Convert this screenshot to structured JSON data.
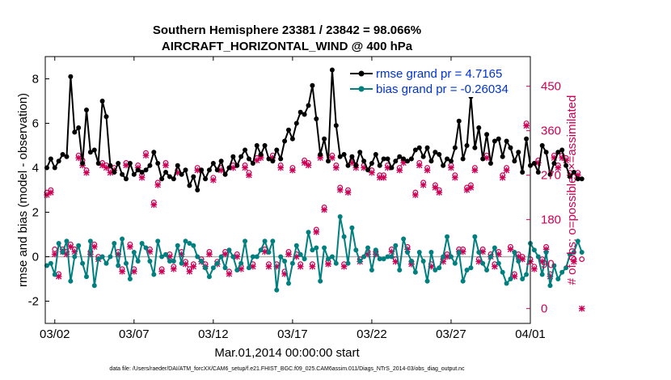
{
  "chart_data": {
    "type": "line",
    "title_line1": "Southern Hemisphere 23381 / 23842 = 98.066%",
    "title_line2": "AIRCRAFT_HORIZONTAL_WIND @ 400 hPa",
    "xlabel": "Mar.01,2014 00:00:00 start",
    "ylabel_left": "rmse and bias (model - observation)",
    "ylabel_right": "# of obs: o=possible; ×=assimilated",
    "footnote": "data file: /Users/raeder/DAI/ATM_forcXX/CAM6_setup/f.e21.FHIST_BGC.f09_025.CAM6assim.011/Diags_NTrS_2014-03/obs_diag_output.nc",
    "xlim": [
      0.4,
      31.0
    ],
    "ylim_left": [
      -3,
      9
    ],
    "ylim_right": [
      -30,
      510
    ],
    "x_ticks": [
      1.0,
      6.0,
      11.0,
      16.0,
      21.0,
      26.0,
      31.0
    ],
    "x_tick_labels": [
      "03/02",
      "03/07",
      "03/12",
      "03/17",
      "03/22",
      "03/27",
      "04/01"
    ],
    "yticks_left": [
      "-2",
      "0",
      "2",
      "4",
      "6",
      "8"
    ],
    "yticks_right": [
      "0",
      "90",
      "180",
      "270",
      "360",
      "450"
    ],
    "legend": {
      "rmse_label": "rmse grand pr = 4.7165",
      "bias_label": "bias grand pr = -0.26034",
      "placement": "top-right"
    },
    "colors": {
      "rmse": "#000000",
      "bias": "#007f7f",
      "obs": "#cc0055",
      "legend_text": "#0033cc",
      "zero_line": "#b0b0b0"
    },
    "start_x": 0.5,
    "dx": 0.25,
    "series": [
      {
        "name": "rmse",
        "values": [
          4.0,
          4.4,
          4.0,
          4.3,
          4.6,
          4.5,
          8.1,
          5.6,
          5.8,
          4.2,
          6.6,
          4.7,
          4.8,
          4.2,
          7.0,
          6.3,
          4.1,
          3.8,
          4.2,
          3.7,
          3.5,
          4.2,
          3.7,
          3.9,
          3.8,
          3.9,
          4.1,
          4.7,
          4.2,
          3.5,
          3.8,
          3.6,
          3.5,
          4.1,
          3.7,
          3.9,
          3.2,
          3.6,
          3.0,
          3.9,
          3.5,
          3.9,
          4.2,
          3.9,
          4.3,
          3.7,
          4.0,
          4.5,
          4.1,
          4.5,
          4.8,
          4.4,
          4.2,
          5.0,
          4.6,
          5.0,
          4.4,
          4.3,
          4.8,
          4.4,
          5.2,
          5.7,
          5.3,
          6.0,
          6.5,
          6.4,
          6.8,
          7.7,
          6.2,
          4.6,
          5.3,
          4.3,
          8.4,
          5.9,
          4.5,
          4.6,
          4.1,
          4.5,
          4.1,
          4.7,
          4.3,
          3.9,
          4.2,
          4.6,
          4.1,
          4.4,
          4.4,
          4.0,
          4.3,
          4.5,
          4.4,
          4.3,
          4.4,
          4.8,
          4.9,
          4.5,
          4.9,
          4.3,
          4.7,
          4.6,
          4.1,
          4.4,
          4.3,
          4.9,
          6.1,
          4.4,
          5.0,
          7.2,
          4.9,
          5.8,
          4.4,
          5.5,
          4.2,
          5.2,
          5.3,
          4.5,
          5.2,
          4.9,
          4.3,
          4.7,
          3.8,
          5.3,
          4.1,
          4.2,
          3.8,
          5.0,
          4.7,
          3.7,
          4.2,
          4.7,
          4.8,
          4.1,
          3.6,
          3.8,
          3.5,
          3.5
        ],
        "color": "#000000"
      },
      {
        "name": "bias",
        "values": [
          -0.4,
          -0.3,
          -0.8,
          0.6,
          0.2,
          0.7,
          -1.1,
          0.0,
          0.5,
          -0.3,
          -0.9,
          0.7,
          -1.3,
          -0.1,
          0.0,
          -0.3,
          0.0,
          0.6,
          -0.4,
          0.8,
          -0.3,
          -1.0,
          0.2,
          -0.2,
          0.6,
          0.4,
          -0.2,
          -0.8,
          0.7,
          0.0,
          0.1,
          -0.2,
          -0.2,
          0.5,
          -0.3,
          0.7,
          0.6,
          0.5,
          0.0,
          -0.2,
          -0.5,
          -0.9,
          -0.5,
          -0.3,
          0.0,
          -0.5,
          0.3,
          0.0,
          -0.6,
          -0.3,
          0.7,
          -0.5,
          0.0,
          0.0,
          0.3,
          0.7,
          0.2,
          0.7,
          -1.5,
          0.0,
          -0.2,
          -1.2,
          -0.3,
          0.5,
          0.1,
          -0.1,
          1.1,
          0.3,
          0.4,
          -1.1,
          0.4,
          -0.1,
          0.0,
          -0.3,
          1.8,
          0.9,
          -0.3,
          1.3,
          0.3,
          -0.2,
          0.0,
          0.4,
          -0.6,
          0.3,
          -0.1,
          -0.1,
          0.0,
          0.0,
          0.5,
          -0.6,
          0.8,
          0.2,
          -0.2,
          -0.7,
          0.2,
          -0.2,
          -1.1,
          0.2,
          -0.6,
          -0.5,
          0.0,
          0.9,
          0.0,
          -0.3,
          0.2,
          -1.1,
          -0.6,
          -0.5,
          0.9,
          0.2,
          -0.3,
          -0.6,
          0.0,
          0.4,
          -0.3,
          -0.7,
          -1.2,
          -1.0,
          0.2,
          -0.2,
          -1.0,
          -0.8,
          0.6,
          0.3,
          0.0,
          -0.8,
          0.2,
          -1.3,
          -0.4,
          -1.0,
          -0.7,
          -0.5,
          0.1,
          0.2,
          0.7,
          0.2
        ],
        "color": "#007f7f"
      },
      {
        "name": "obs_possible",
        "values": [
          235,
          240,
          120,
          70,
          120,
          115,
          130,
          120,
          310,
          300,
          280,
          115,
          130,
          105,
          295,
          290,
          280,
          285,
          115,
          80,
          295,
          130,
          80,
          290,
          270,
          315,
          120,
          215,
          255,
          80,
          295,
          110,
          85,
          280,
          115,
          95,
          80,
          90,
          285,
          100,
          90,
          115,
          265,
          95,
          285,
          115,
          75,
          290,
          110,
          85,
          290,
          275,
          90,
          305,
          310,
          120,
          90,
          310,
          90,
          290,
          75,
          115,
          285,
          110,
          90,
          300,
          295,
          90,
          160,
          310,
          205,
          95,
          310,
          290,
          245,
          90,
          240,
          300,
          290,
          100,
          290,
          115,
          280,
          115,
          270,
          270,
          290,
          120,
          100,
          285,
          300,
          125,
          95,
          235,
          295,
          255,
          285,
          90,
          250,
          240,
          100,
          110,
          290,
          270,
          120,
          120,
          245,
          250,
          285,
          100,
          120,
          310,
          110,
          90,
          115,
          270,
          285,
          125,
          70,
          110,
          105,
          375,
          100,
          85,
          300,
          100,
          125,
          70,
          310,
          290,
          310,
          305,
          275,
          100,
          275,
          100
        ],
        "symbol": "circle",
        "color": "#cc0055"
      },
      {
        "name": "obs_assimilated",
        "values": [
          230,
          235,
          110,
          65,
          115,
          110,
          125,
          115,
          305,
          290,
          275,
          110,
          125,
          100,
          290,
          285,
          275,
          280,
          110,
          75,
          290,
          125,
          75,
          285,
          265,
          310,
          115,
          210,
          250,
          75,
          290,
          105,
          80,
          275,
          110,
          90,
          75,
          85,
          280,
          95,
          85,
          110,
          260,
          90,
          280,
          110,
          70,
          285,
          105,
          80,
          285,
          270,
          85,
          300,
          305,
          115,
          85,
          305,
          85,
          285,
          70,
          110,
          280,
          105,
          85,
          295,
          290,
          85,
          155,
          305,
          200,
          90,
          305,
          285,
          240,
          85,
          235,
          295,
          285,
          95,
          285,
          110,
          275,
          110,
          265,
          265,
          285,
          115,
          95,
          280,
          295,
          120,
          90,
          230,
          290,
          250,
          280,
          85,
          245,
          235,
          95,
          105,
          285,
          265,
          115,
          115,
          240,
          245,
          280,
          95,
          115,
          305,
          105,
          85,
          110,
          265,
          280,
          120,
          65,
          105,
          100,
          370,
          95,
          80,
          295,
          95,
          120,
          65,
          305,
          285,
          305,
          300,
          270,
          95,
          270,
          0
        ],
        "symbol": "cross",
        "color": "#cc0055"
      }
    ]
  }
}
